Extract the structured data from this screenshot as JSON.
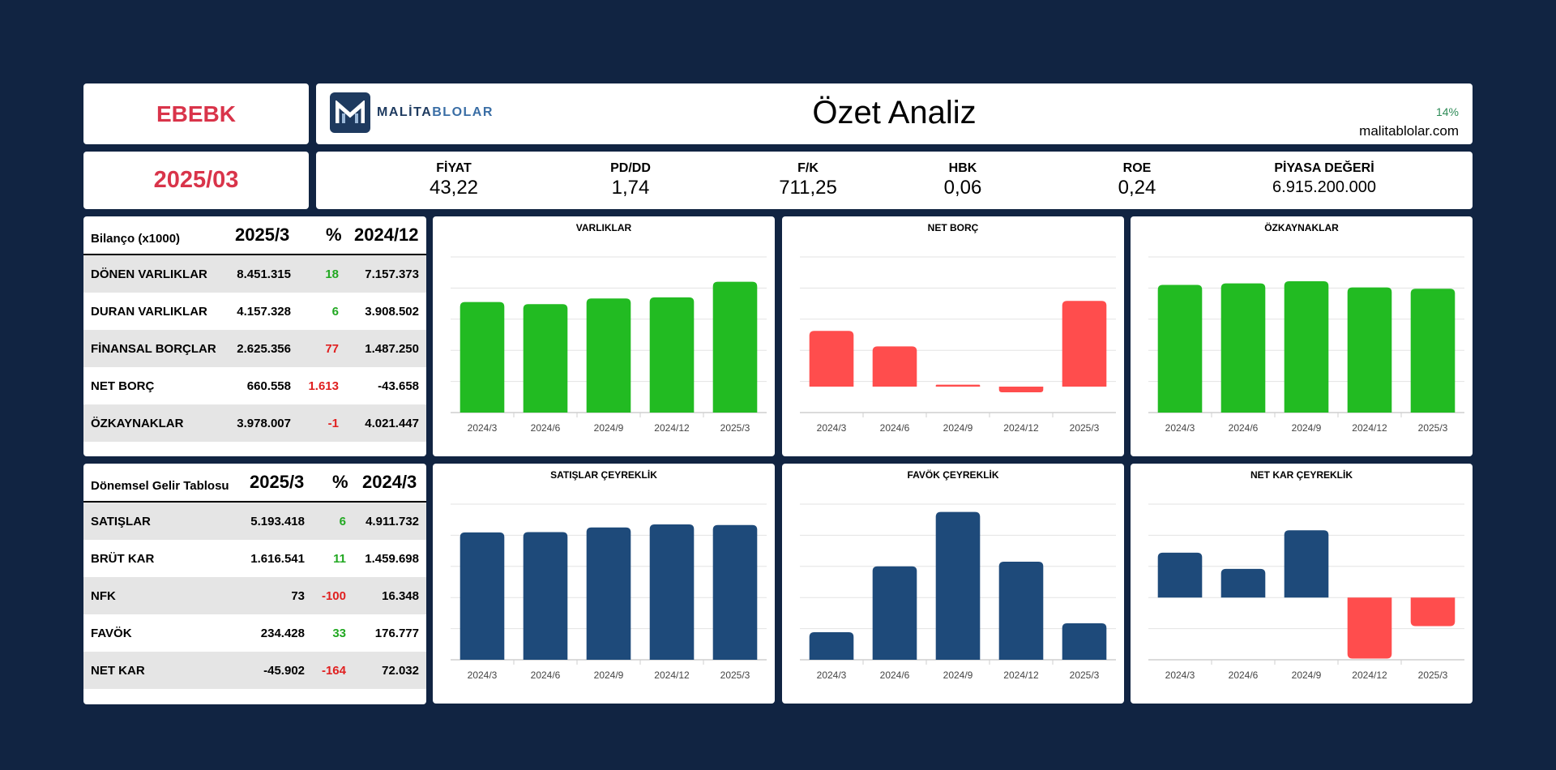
{
  "ticker": "EBEBK",
  "period": "2025/03",
  "header": {
    "logo_text_a": "MALİTA",
    "logo_text_b": "BLOLAR",
    "title": "Özet Analiz",
    "percent": "14%",
    "site": "malitablolar.com"
  },
  "metrics": [
    {
      "label": "FİYAT",
      "value": "43,22"
    },
    {
      "label": "PD/DD",
      "value": "1,74"
    },
    {
      "label": "F/K",
      "value": "711,25"
    },
    {
      "label": "HBK",
      "value": "0,06"
    },
    {
      "label": "ROE",
      "value": "0,24"
    },
    {
      "label": "PİYASA DEĞERİ",
      "value": "6.915.200.000"
    }
  ],
  "balance": {
    "title": "Bilanço (x1000)",
    "col1": "2025/3",
    "col2": "%",
    "col3": "2024/12",
    "rows": [
      {
        "name": "DÖNEN VARLIKLAR",
        "v1": "8.451.315",
        "pct": "18",
        "v2": "7.157.373"
      },
      {
        "name": "DURAN VARLIKLAR",
        "v1": "4.157.328",
        "pct": "6",
        "v2": "3.908.502"
      },
      {
        "name": "FİNANSAL BORÇLAR",
        "v1": "2.625.356",
        "pct": "77",
        "v2": "1.487.250"
      },
      {
        "name": "NET BORÇ",
        "v1": "660.558",
        "pct": "1.613",
        "v2": "-43.658"
      },
      {
        "name": "ÖZKAYNAKLAR",
        "v1": "3.978.007",
        "pct": "-1",
        "v2": "4.021.447"
      }
    ]
  },
  "income": {
    "title": "Dönemsel Gelir Tablosu",
    "col1": "2025/3",
    "col2": "%",
    "col3": "2024/3",
    "rows": [
      {
        "name": "SATIŞLAR",
        "v1": "5.193.418",
        "pct": "6",
        "v2": "4.911.732"
      },
      {
        "name": "BRÜT KAR",
        "v1": "1.616.541",
        "pct": "11",
        "v2": "1.459.698"
      },
      {
        "name": "NFK",
        "v1": "73",
        "pct": "-100",
        "v2": "16.348"
      },
      {
        "name": "FAVÖK",
        "v1": "234.428",
        "pct": "33",
        "v2": "176.777"
      },
      {
        "name": "NET KAR",
        "v1": "-45.902",
        "pct": "-164",
        "v2": "72.032"
      }
    ]
  },
  "colors": {
    "green": "#22bb22",
    "red": "#ff4d4d",
    "blue": "#1e4a7a",
    "text_red": "#e02020",
    "text_green": "#22a822"
  },
  "chart_data": [
    {
      "type": "bar",
      "title": "VARLIKLAR",
      "categories": [
        "2024/3",
        "2024/6",
        "2024/9",
        "2024/12",
        "2025/3"
      ],
      "values": [
        10650000,
        10450000,
        11000000,
        11100000,
        12610000
      ],
      "ylim": [
        0,
        15000000
      ],
      "color": "green"
    },
    {
      "type": "bar",
      "title": "NET BORÇ",
      "categories": [
        "2024/3",
        "2024/6",
        "2024/9",
        "2024/12",
        "2025/3"
      ],
      "values": [
        430000,
        310000,
        15000,
        -43658,
        660558
      ],
      "ylim": [
        -200000,
        1000000
      ],
      "color": "red"
    },
    {
      "type": "bar",
      "title": "ÖZKAYNAKLAR",
      "categories": [
        "2024/3",
        "2024/6",
        "2024/9",
        "2024/12",
        "2025/3"
      ],
      "values": [
        4100000,
        4150000,
        4220000,
        4021447,
        3978007
      ],
      "ylim": [
        0,
        5000000
      ],
      "color": "green"
    },
    {
      "type": "bar",
      "title": "SATIŞLAR ÇEYREKLİK",
      "categories": [
        "2024/3",
        "2024/6",
        "2024/9",
        "2024/12",
        "2025/3"
      ],
      "values": [
        4911732,
        4920000,
        5100000,
        5220000,
        5193418
      ],
      "ylim": [
        0,
        6000000
      ],
      "color": "blue"
    },
    {
      "type": "bar",
      "title": "FAVÖK ÇEYREKLİK",
      "categories": [
        "2024/3",
        "2024/6",
        "2024/9",
        "2024/12",
        "2025/3"
      ],
      "values": [
        176777,
        600000,
        950000,
        630000,
        234428
      ],
      "ylim": [
        0,
        1000000
      ],
      "color": "blue"
    },
    {
      "type": "bar",
      "title": "NET KAR ÇEYREKLİK",
      "categories": [
        "2024/3",
        "2024/6",
        "2024/9",
        "2024/12",
        "2025/3"
      ],
      "values": [
        72032,
        46000,
        108000,
        -98000,
        -45902
      ],
      "ylim": [
        -100000,
        150000
      ],
      "color": "blue",
      "negative_color": "red"
    }
  ]
}
